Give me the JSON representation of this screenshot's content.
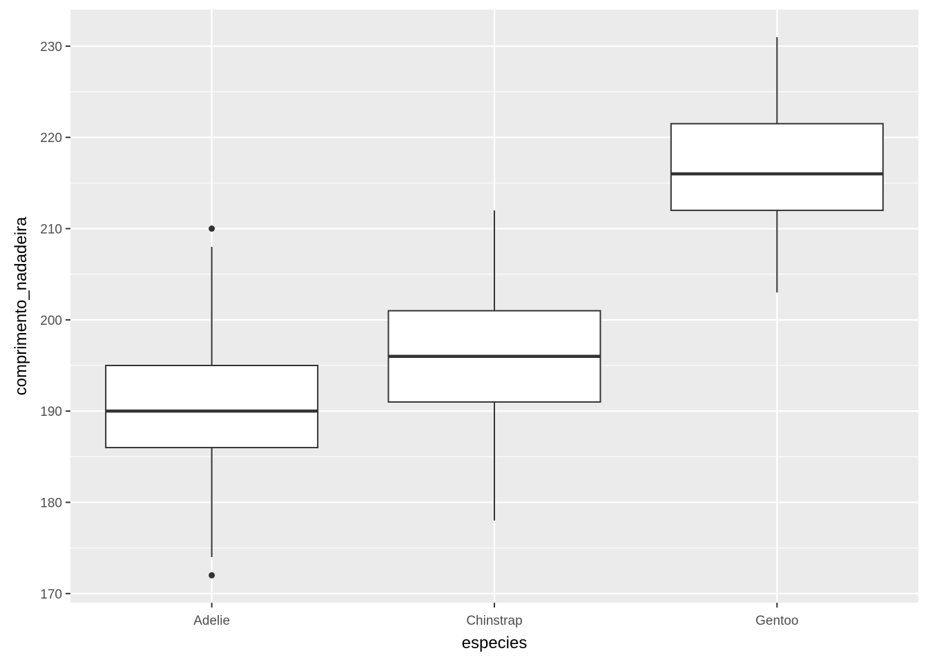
{
  "chart_data": {
    "type": "boxplot",
    "xlabel": "especies",
    "ylabel": "comprimento_nadadeira",
    "categories": [
      "Adelie",
      "Chinstrap",
      "Gentoo"
    ],
    "ylim": [
      169,
      234
    ],
    "y_ticks": [
      170,
      180,
      190,
      200,
      210,
      220,
      230
    ],
    "y_tick_labels": [
      "170",
      "180",
      "190",
      "200",
      "210",
      "220",
      "230"
    ],
    "grid": true,
    "legend": "none",
    "boxes": [
      {
        "category": "Adelie",
        "whisker_low": 174,
        "q1": 186,
        "median": 190,
        "q3": 195,
        "whisker_high": 208,
        "outliers": [
          210,
          172
        ]
      },
      {
        "category": "Chinstrap",
        "whisker_low": 178,
        "q1": 191,
        "median": 196,
        "q3": 201,
        "whisker_high": 212,
        "outliers": []
      },
      {
        "category": "Gentoo",
        "whisker_low": 203,
        "q1": 212,
        "median": 216,
        "q3": 221.5,
        "whisker_high": 231,
        "outliers": []
      }
    ],
    "colors": {
      "panel_background": "#EBEBEB",
      "grid_major": "#FFFFFF",
      "box_fill": "#FFFFFF",
      "box_line": "#333333",
      "tick_text": "#4D4D4D",
      "axis_title": "#000000"
    }
  }
}
